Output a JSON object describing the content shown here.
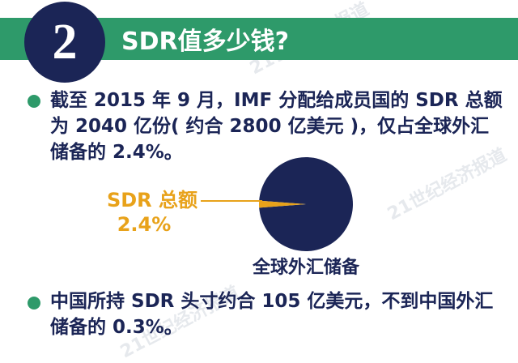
{
  "header": {
    "number": "2",
    "title": "SDR值多少钱?"
  },
  "paragraphs": [
    "截至 2015 年 9 月，IMF 分配给成员国的 SDR 总额为 2040 亿份( 约合 2800 亿美元 )，仅占全球外汇储备的 2.4%。",
    "中国所持 SDR 头寸约合 105 亿美元，不到中国外汇储备的 0.3%。"
  ],
  "chart_data": {
    "type": "pie",
    "slices": [
      {
        "label": "SDR 总额",
        "value": 2.4,
        "color": "#e8a21a"
      },
      {
        "label": "全球外汇储备",
        "value": 97.6,
        "color": "#1b2556"
      }
    ],
    "highlight_label": "SDR 总额",
    "highlight_value_text": "2.4%",
    "caption": "全球外汇储备"
  },
  "watermark": "21世纪经济报道",
  "colors": {
    "navy": "#1b2556",
    "green": "#2e9a6a",
    "orange": "#e8a21a"
  }
}
